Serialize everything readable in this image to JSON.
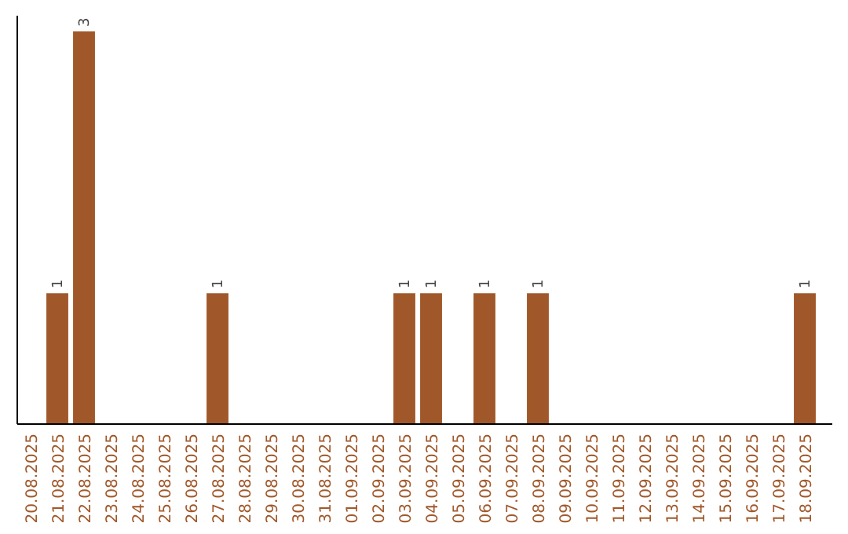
{
  "chart_data": {
    "type": "bar",
    "categories": [
      "20.08.2025",
      "21.08.2025",
      "22.08.2025",
      "23.08.2025",
      "24.08.2025",
      "25.08.2025",
      "26.08.2025",
      "27.08.2025",
      "28.08.2025",
      "29.08.2025",
      "30.08.2025",
      "31.08.2025",
      "01.09.2025",
      "02.09.2025",
      "03.09.2025",
      "04.09.2025",
      "05.09.2025",
      "06.09.2025",
      "07.09.2025",
      "08.09.2025",
      "09.09.2025",
      "10.09.2025",
      "11.09.2025",
      "12.09.2025",
      "13.09.2025",
      "14.09.2025",
      "15.09.2025",
      "16.09.2025",
      "17.09.2025",
      "18.09.2025"
    ],
    "values": [
      0,
      1,
      3,
      0,
      0,
      0,
      0,
      1,
      0,
      0,
      0,
      0,
      0,
      0,
      1,
      1,
      0,
      1,
      0,
      1,
      0,
      0,
      0,
      0,
      0,
      0,
      0,
      0,
      0,
      1
    ],
    "value_labels": [
      null,
      "1",
      "3",
      null,
      null,
      null,
      null,
      "1",
      null,
      null,
      null,
      null,
      null,
      null,
      "1",
      "1",
      null,
      "1",
      null,
      "1",
      null,
      null,
      null,
      null,
      null,
      null,
      null,
      null,
      null,
      "1"
    ],
    "color": "#a0582a",
    "tick_labels": "x"
  }
}
